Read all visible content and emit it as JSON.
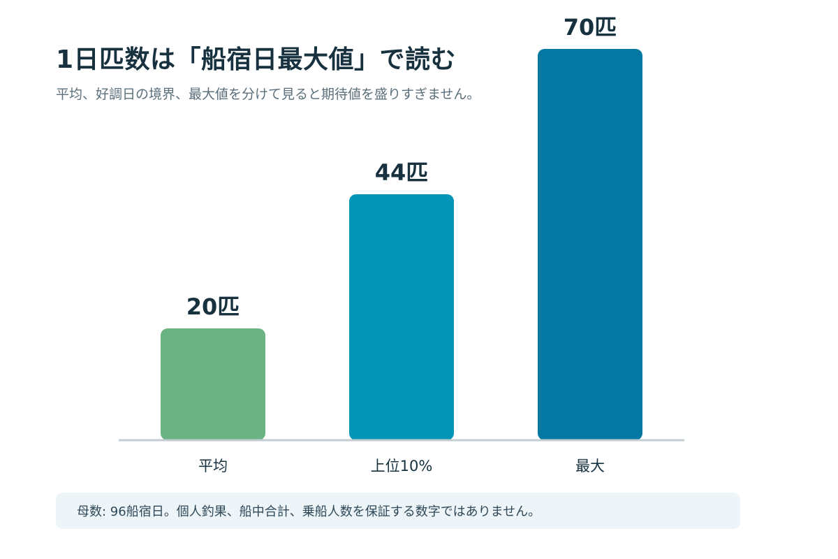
{
  "header": {
    "title": "1日匹数は「船宿日最大値」で読む",
    "subtitle": "平均、好調日の境界、最大値を分けて見ると期待値を盛りすぎません。"
  },
  "chart_data": {
    "type": "bar",
    "categories": [
      "平均",
      "上位10%",
      "最大"
    ],
    "values": [
      20,
      44,
      70
    ],
    "value_labels": [
      "20匹",
      "44匹",
      "70匹"
    ],
    "bar_colors": [
      "#6bb382",
      "#0495b7",
      "#0477a2"
    ],
    "title": "1日匹数は「船宿日最大値」で読む",
    "subtitle": "平均、好調日の境界、最大値を分けて見ると期待値を盛りすぎません。",
    "xlabel": "",
    "ylabel": "",
    "ylim": [
      0,
      70
    ],
    "grid": false,
    "legend": "none"
  },
  "footnote": {
    "text": "母数: 96船宿日。個人釣果、船中合計、乗船人数を保証する数字ではありません。"
  }
}
